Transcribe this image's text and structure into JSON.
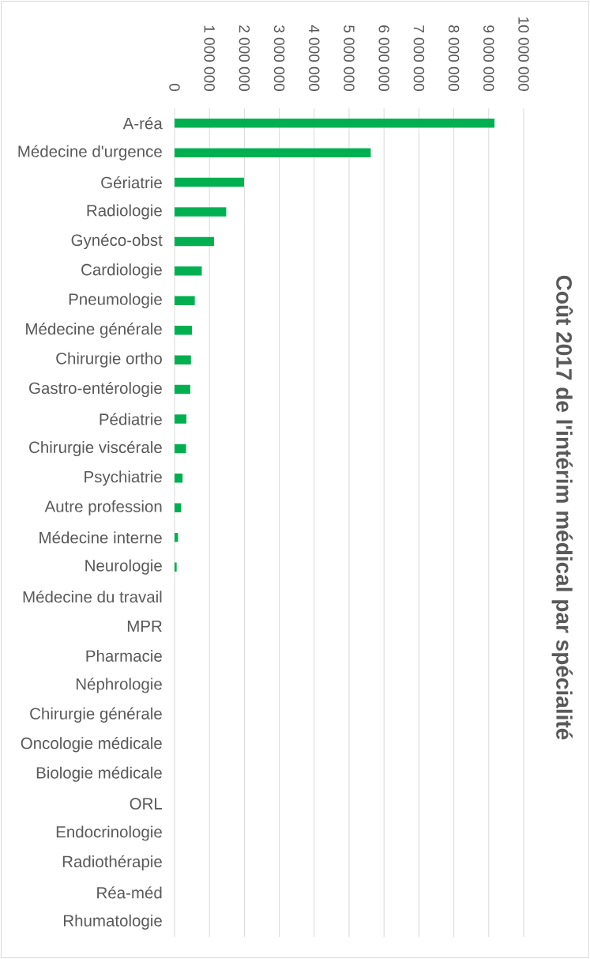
{
  "chart_data": {
    "type": "bar",
    "orientation": "horizontal",
    "title": "Coût 2017 de l'intérim médical par spécialité",
    "categories": [
      "A-réa",
      "Médecine d'urgence",
      "Gériatrie",
      "Radiologie",
      "Gynéco-obst",
      "Cardiologie",
      "Pneumologie",
      "Médecine générale",
      "Chirurgie ortho",
      "Gastro-entérologie",
      "Pédiatrie",
      "Chirurgie viscérale",
      "Psychiatrie",
      "Autre profession",
      "Médecine interne",
      "Neurologie",
      "Médecine du travail",
      "MPR",
      "Pharmacie",
      "Néphrologie",
      "Chirurgie générale",
      "Oncologie médicale",
      "Biologie médicale",
      "ORL",
      "Endocrinologie",
      "Radiothérapie",
      "Réa-méd",
      "Rhumatologie"
    ],
    "values": [
      9170000,
      5620000,
      1990000,
      1480000,
      1130000,
      780000,
      580000,
      500000,
      470000,
      450000,
      340000,
      330000,
      230000,
      190000,
      100000,
      60000,
      0,
      0,
      0,
      0,
      0,
      0,
      0,
      0,
      0,
      0,
      0,
      0
    ],
    "color": "#00b050",
    "xlim": [
      0,
      10000000
    ],
    "xticks": [
      0,
      {
        "value": 1000000,
        "label": "1 000 000"
      },
      {
        "value": 2000000,
        "label": "2 000 000"
      },
      {
        "value": 3000000,
        "label": "3 000 000"
      },
      {
        "value": 4000000,
        "label": "4 000 000"
      },
      {
        "value": 5000000,
        "label": "5 000 000"
      },
      {
        "value": 6000000,
        "label": "6 000 000"
      },
      {
        "value": 7000000,
        "label": "7 000 000"
      },
      {
        "value": 8000000,
        "label": "8 000 000"
      },
      {
        "value": 9000000,
        "label": "9 000 000"
      },
      {
        "value": 10000000,
        "label": "10 000 000"
      }
    ],
    "grid": "x"
  }
}
